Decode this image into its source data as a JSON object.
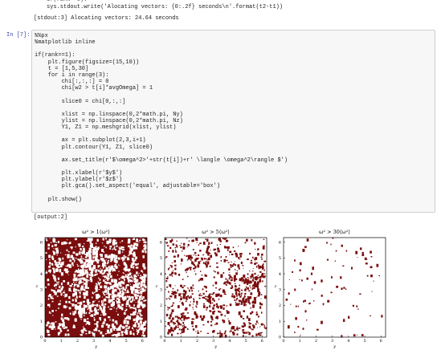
{
  "previous_output": {
    "code_line": "sys.stdout.write('Alocating vectors: {0:.2f} seconds\\n'.format(t2-t1))",
    "stdout": "[stdout:3] Alocating vectors: 24.64 seconds"
  },
  "cell": {
    "prompt": "In [7]:",
    "code_blocks": [
      [
        "%%px",
        "%matplotlib inline"
      ],
      [
        "if(rank==1):",
        "    plt.figure(figsize=(15,10))",
        "    t = [1,5,30]",
        "    for i in range(3):",
        "        chi[:,:,:] = 0",
        "        chi[w2 > t[i]*avgOmega] = 1"
      ],
      [
        "        slice0 = chi[0,:,:]"
      ],
      [
        "        xlist = np.linspace(0,2*math.pi, Ny)",
        "        ylist = np.linspace(0,2*math.pi, Nz)",
        "        Y1, Z1 = np.meshgrid(xlist, ylist)"
      ],
      [
        "        ax = plt.subplot(2,3,i+1)",
        "        plt.contour(Y1, Z1, slice0)"
      ],
      [
        "        ax.set_title(r'$\\omega^2>'+str(t[i])+r' \\langle \\omega^2\\rangle $')"
      ],
      [
        "        plt.xlabel(r'$y$')",
        "        plt.ylabel(r'$z$')",
        "        plt.gca().set_aspect('equal', adjustable='box')"
      ],
      [
        "    plt.show()"
      ]
    ],
    "output_label": "[output:2]",
    "figures": [
      {
        "title": "ω² > 1⟨ω²⟩",
        "xlabel": "y",
        "ylabel": "z"
      },
      {
        "title": "ω² > 5⟨ω²⟩",
        "xlabel": "y",
        "ylabel": "z"
      },
      {
        "title": "ω² > 30⟨ω²⟩",
        "xlabel": "y",
        "ylabel": "z"
      }
    ],
    "ticks": [
      0,
      1,
      2,
      3,
      4,
      5,
      6
    ]
  }
}
